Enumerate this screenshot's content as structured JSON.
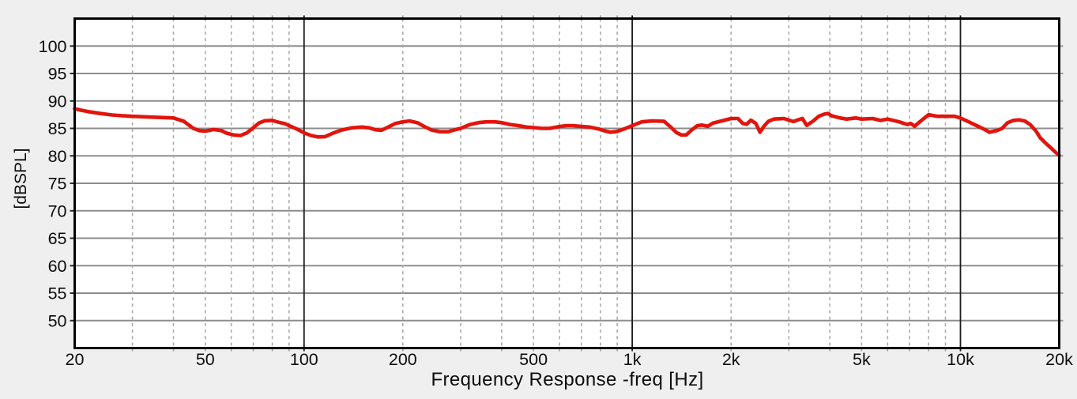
{
  "figure": {
    "background": "#efefef",
    "plot_background": "#ffffff",
    "border_color": "#000000",
    "h_grid_color": "#8d8d8d",
    "v_grid_dashed_color": "#ababab",
    "decade_line_color": "#1b1b1b",
    "tick_stub_dark_color": "#2a2a2a",
    "tick_stub_light_color": "#9e9e9e",
    "text_color": "#0d0d0d",
    "curve_color": "#e2140c"
  },
  "chart_data": {
    "type": "line",
    "title": "Frequency Response -freq [Hz]",
    "ylabel": "[dBSPL]",
    "x_scale": "log",
    "xlim": [
      20,
      20000
    ],
    "ylim": [
      45,
      105
    ],
    "grid": true,
    "legend_position": "none",
    "x_tick_labels": [
      {
        "f": 20,
        "label": "20"
      },
      {
        "f": 50,
        "label": "50"
      },
      {
        "f": 100,
        "label": "100"
      },
      {
        "f": 200,
        "label": "200"
      },
      {
        "f": 500,
        "label": "500"
      },
      {
        "f": 1000,
        "label": "1k"
      },
      {
        "f": 2000,
        "label": "2k"
      },
      {
        "f": 5000,
        "label": "5k"
      },
      {
        "f": 10000,
        "label": "10k"
      },
      {
        "f": 20000,
        "label": "20k"
      }
    ],
    "y_ticks": [
      50,
      55,
      60,
      65,
      70,
      75,
      80,
      85,
      90,
      95,
      100
    ],
    "v_gridlines_dashed": [
      30,
      40,
      50,
      60,
      70,
      80,
      90,
      200,
      300,
      400,
      500,
      600,
      700,
      800,
      900,
      2000,
      3000,
      4000,
      5000,
      6000,
      7000,
      8000,
      9000
    ],
    "v_gridlines_solid": [
      100,
      1000,
      10000
    ],
    "series": [
      {
        "name": "frequency-response",
        "color": "#e2140c",
        "points": [
          [
            20,
            88.6
          ],
          [
            21,
            88.3
          ],
          [
            22,
            88.05
          ],
          [
            24,
            87.7
          ],
          [
            26,
            87.45
          ],
          [
            28,
            87.3
          ],
          [
            30,
            87.2
          ],
          [
            33,
            87.1
          ],
          [
            36,
            87.0
          ],
          [
            40,
            86.9
          ],
          [
            43,
            86.3
          ],
          [
            46,
            85.0
          ],
          [
            48,
            84.6
          ],
          [
            50,
            84.5
          ],
          [
            53,
            84.8
          ],
          [
            56,
            84.6
          ],
          [
            58,
            84.15
          ],
          [
            61,
            83.8
          ],
          [
            64,
            83.7
          ],
          [
            67,
            84.2
          ],
          [
            70,
            85.1
          ],
          [
            73,
            86.0
          ],
          [
            76,
            86.4
          ],
          [
            80,
            86.45
          ],
          [
            84,
            86.1
          ],
          [
            88,
            85.8
          ],
          [
            90,
            85.5
          ],
          [
            95,
            84.9
          ],
          [
            100,
            84.2
          ],
          [
            105,
            83.7
          ],
          [
            110,
            83.45
          ],
          [
            116,
            83.5
          ],
          [
            122,
            84.1
          ],
          [
            130,
            84.7
          ],
          [
            140,
            85.1
          ],
          [
            150,
            85.25
          ],
          [
            158,
            85.1
          ],
          [
            165,
            84.75
          ],
          [
            172,
            84.65
          ],
          [
            180,
            85.2
          ],
          [
            190,
            85.9
          ],
          [
            200,
            86.2
          ],
          [
            210,
            86.35
          ],
          [
            222,
            86.0
          ],
          [
            233,
            85.3
          ],
          [
            245,
            84.7
          ],
          [
            260,
            84.4
          ],
          [
            275,
            84.4
          ],
          [
            290,
            84.8
          ],
          [
            300,
            85.0
          ],
          [
            320,
            85.7
          ],
          [
            340,
            86.05
          ],
          [
            360,
            86.2
          ],
          [
            380,
            86.2
          ],
          [
            400,
            86.05
          ],
          [
            425,
            85.7
          ],
          [
            450,
            85.5
          ],
          [
            475,
            85.25
          ],
          [
            500,
            85.15
          ],
          [
            530,
            85.0
          ],
          [
            560,
            85.0
          ],
          [
            600,
            85.35
          ],
          [
            630,
            85.5
          ],
          [
            660,
            85.5
          ],
          [
            700,
            85.35
          ],
          [
            740,
            85.25
          ],
          [
            790,
            84.9
          ],
          [
            830,
            84.5
          ],
          [
            860,
            84.3
          ],
          [
            900,
            84.45
          ],
          [
            945,
            84.9
          ],
          [
            1000,
            85.5
          ],
          [
            1070,
            86.2
          ],
          [
            1150,
            86.35
          ],
          [
            1250,
            86.3
          ],
          [
            1310,
            85.25
          ],
          [
            1360,
            84.3
          ],
          [
            1410,
            83.8
          ],
          [
            1460,
            83.8
          ],
          [
            1520,
            84.75
          ],
          [
            1580,
            85.5
          ],
          [
            1630,
            85.6
          ],
          [
            1700,
            85.4
          ],
          [
            1760,
            85.95
          ],
          [
            1870,
            86.35
          ],
          [
            2000,
            86.8
          ],
          [
            2100,
            86.8
          ],
          [
            2170,
            85.9
          ],
          [
            2230,
            85.75
          ],
          [
            2300,
            86.5
          ],
          [
            2380,
            85.9
          ],
          [
            2450,
            84.3
          ],
          [
            2520,
            85.4
          ],
          [
            2600,
            86.3
          ],
          [
            2700,
            86.7
          ],
          [
            2800,
            86.75
          ],
          [
            2900,
            86.8
          ],
          [
            3000,
            86.5
          ],
          [
            3100,
            86.25
          ],
          [
            3200,
            86.55
          ],
          [
            3300,
            86.8
          ],
          [
            3400,
            85.55
          ],
          [
            3550,
            86.3
          ],
          [
            3700,
            87.2
          ],
          [
            3850,
            87.6
          ],
          [
            3950,
            87.7
          ],
          [
            4050,
            87.3
          ],
          [
            4300,
            86.9
          ],
          [
            4500,
            86.7
          ],
          [
            4800,
            86.9
          ],
          [
            5000,
            86.7
          ],
          [
            5400,
            86.8
          ],
          [
            5700,
            86.45
          ],
          [
            6000,
            86.7
          ],
          [
            6500,
            86.2
          ],
          [
            6900,
            85.7
          ],
          [
            7050,
            85.9
          ],
          [
            7250,
            85.4
          ],
          [
            7700,
            86.7
          ],
          [
            8000,
            87.5
          ],
          [
            8500,
            87.2
          ],
          [
            9000,
            87.2
          ],
          [
            9600,
            87.2
          ],
          [
            10000,
            86.9
          ],
          [
            10600,
            86.2
          ],
          [
            11200,
            85.5
          ],
          [
            11900,
            84.75
          ],
          [
            12250,
            84.3
          ],
          [
            12900,
            84.6
          ],
          [
            13400,
            85.0
          ],
          [
            13900,
            86.0
          ],
          [
            14500,
            86.45
          ],
          [
            15100,
            86.55
          ],
          [
            15700,
            86.35
          ],
          [
            16300,
            85.7
          ],
          [
            17000,
            84.5
          ],
          [
            17500,
            83.3
          ],
          [
            18200,
            82.3
          ],
          [
            18900,
            81.4
          ],
          [
            19400,
            80.75
          ],
          [
            20000,
            80.1
          ]
        ]
      }
    ]
  }
}
